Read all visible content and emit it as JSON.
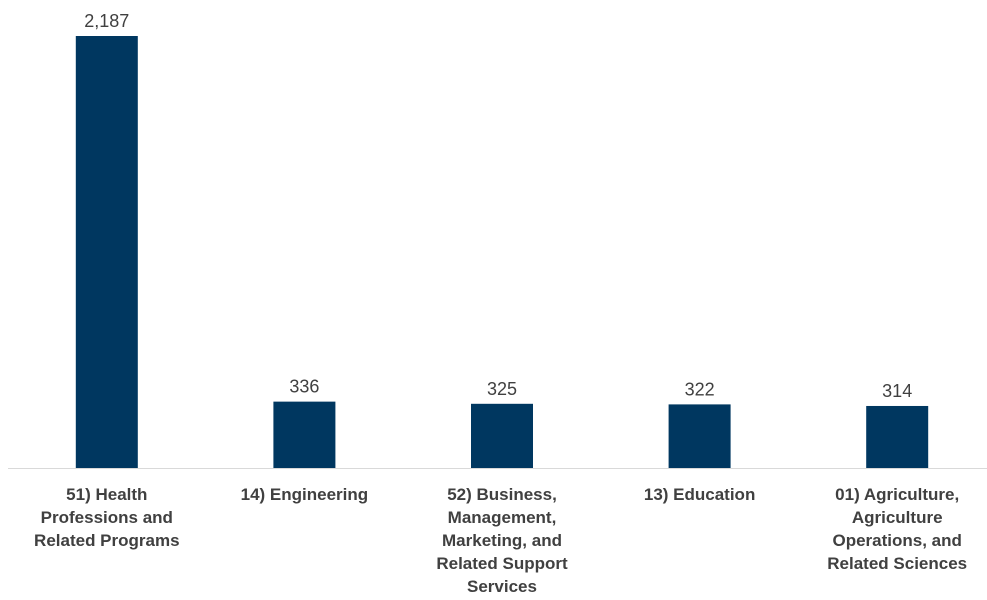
{
  "chart_data": {
    "type": "bar",
    "categories": [
      "51) Health Professions and Related Programs",
      "14) Engineering",
      "52) Business, Management, Marketing, and Related Support Services",
      "13) Education",
      "01) Agriculture, Agriculture Operations, and Related Sciences"
    ],
    "category_lines": [
      [
        "51) Health",
        "Professions and",
        "Related Programs"
      ],
      [
        "14) Engineering"
      ],
      [
        "52) Business,",
        "Management,",
        "Marketing, and",
        "Related Support",
        "Services"
      ],
      [
        "13) Education"
      ],
      [
        "01) Agriculture,",
        "Agriculture",
        "Operations, and",
        "Related Sciences"
      ]
    ],
    "values": [
      2187,
      336,
      325,
      322,
      314
    ],
    "value_labels": [
      "2,187",
      "336",
      "325",
      "322",
      "314"
    ],
    "title": "",
    "xlabel": "",
    "ylabel": "",
    "ylim": [
      0,
      2187
    ],
    "grid": false,
    "legend": "none",
    "bar_color": "#003760",
    "axis_color": "#d9d9d9",
    "text_color": "#404040"
  }
}
